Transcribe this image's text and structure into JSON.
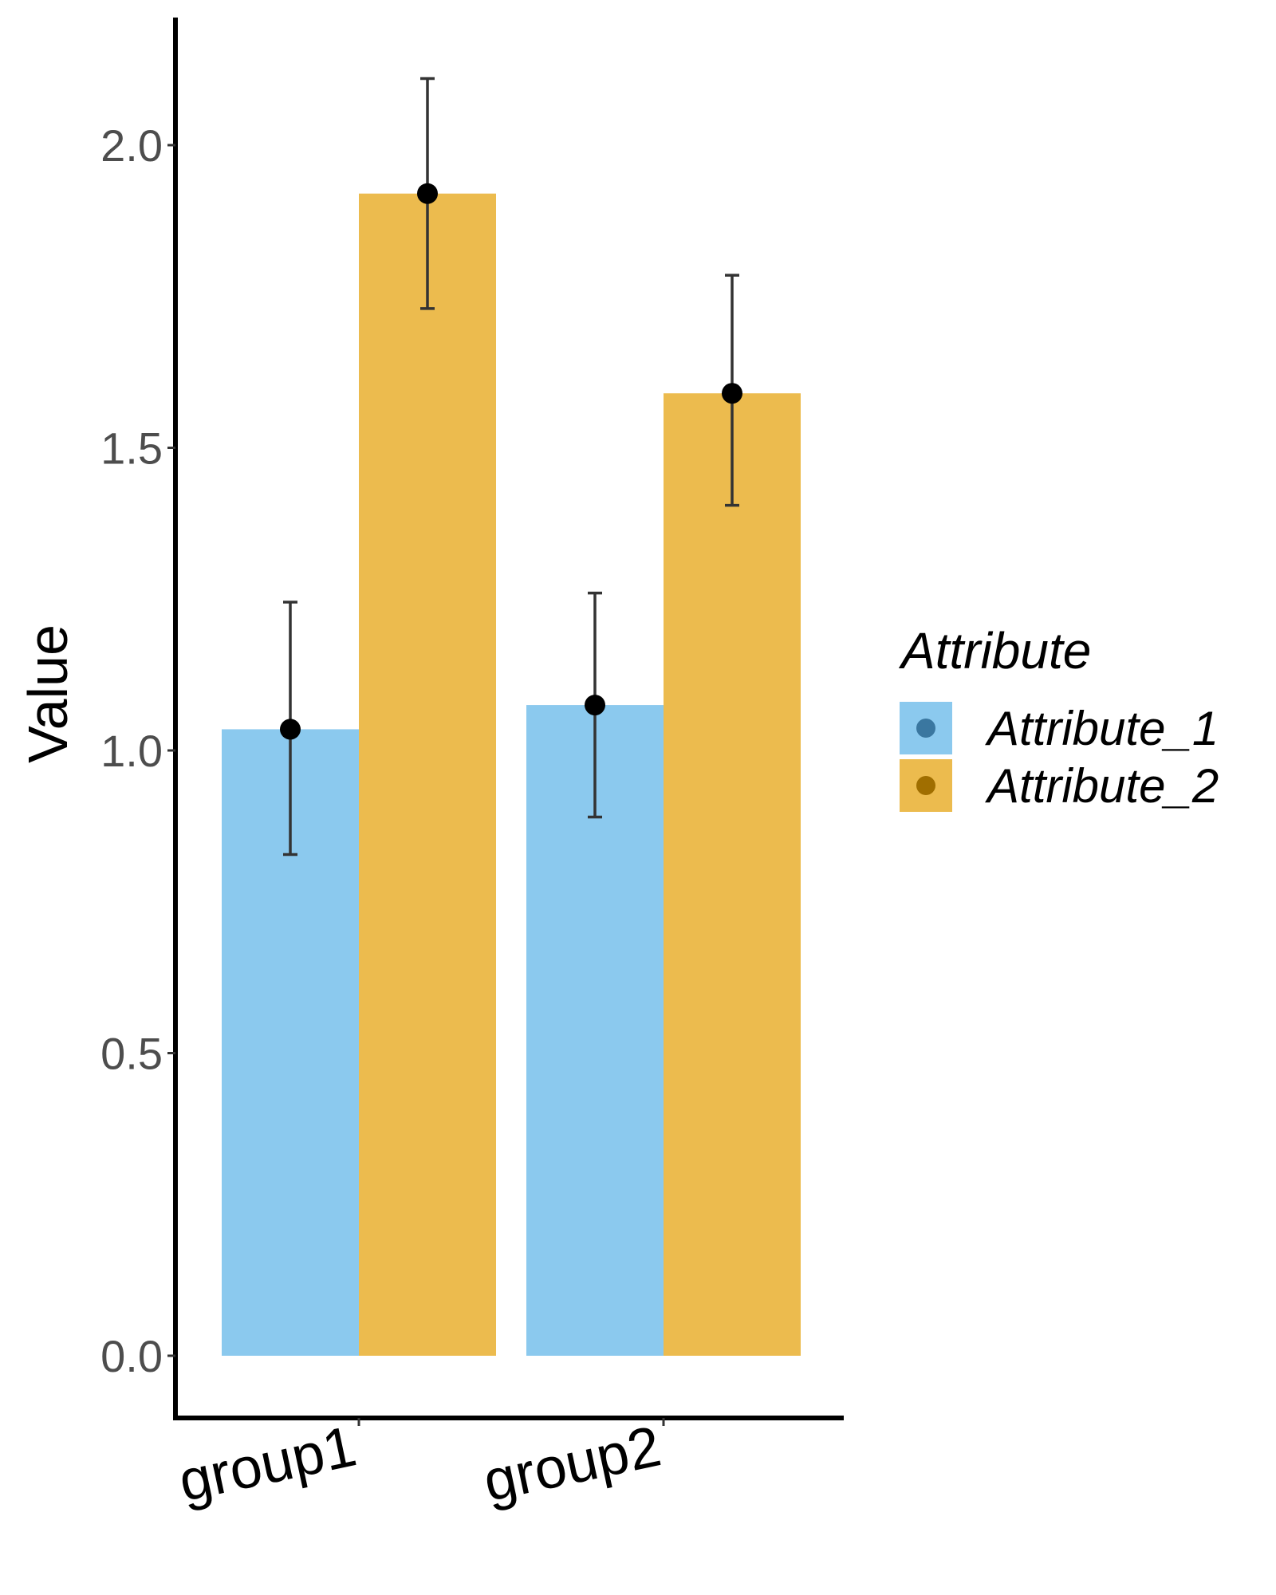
{
  "chart_data": {
    "type": "bar",
    "title": "",
    "xlabel": "",
    "ylabel": "Value",
    "ylim": [
      -0.1,
      2.22
    ],
    "yticks": [
      0.0,
      0.5,
      1.0,
      1.5,
      2.0
    ],
    "ytick_labels": [
      "0.0",
      "0.5",
      "1.0",
      "1.5",
      "2.0"
    ],
    "categories": [
      "group1",
      "group2"
    ],
    "series": [
      {
        "name": "Attribute_1",
        "color": "#8BC9EE",
        "point_color": "#3A77A0",
        "values": [
          1.035,
          1.075
        ],
        "error_low": [
          0.828,
          0.89
        ],
        "error_high": [
          1.245,
          1.26
        ]
      },
      {
        "name": "Attribute_2",
        "color": "#ECBB4E",
        "point_color": "#A06E00",
        "values": [
          1.92,
          1.59
        ],
        "error_low": [
          1.73,
          1.405
        ],
        "error_high": [
          2.11,
          1.785
        ]
      }
    ],
    "legend": {
      "title": "Attribute",
      "position": "right"
    },
    "grid": false
  }
}
